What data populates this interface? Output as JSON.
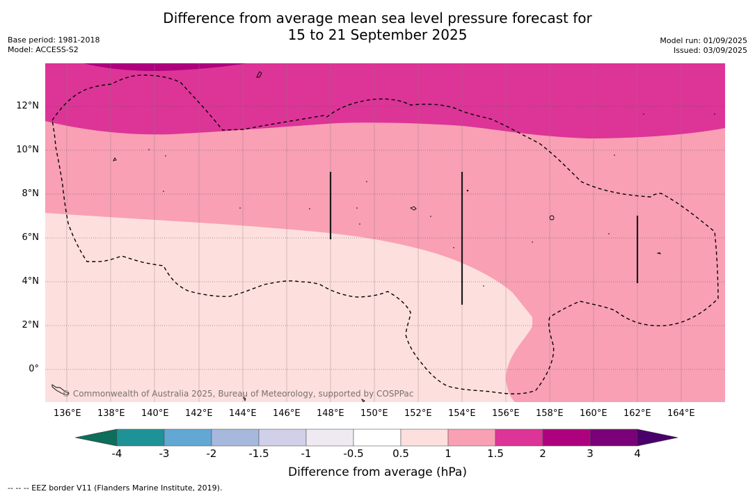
{
  "title_line1": "Difference from average mean sea level pressure forecast for",
  "title_line2": "15 to 21 September 2025",
  "base_period": "Base period: 1981-2018",
  "model": "Model: ACCESS-S2",
  "model_run": "Model run: 01/09/2025",
  "issued": "Issued: 03/09/2025",
  "copyright": "© Commonwealth of Australia 2025, Bureau of Meteorology, supported by COSPPac",
  "footnote": "--  --  -- EEZ border V11 (Flanders Marine Institute, 2019).",
  "map": {
    "lon_labels": [
      "136°E",
      "138°E",
      "140°E",
      "142°E",
      "144°E",
      "146°E",
      "148°E",
      "150°E",
      "152°E",
      "154°E",
      "156°E",
      "158°E",
      "160°E",
      "162°E",
      "164°E"
    ],
    "lat_labels": [
      "12°N",
      "10°N",
      "8°N",
      "6°N",
      "4°N",
      "2°N",
      "0°"
    ],
    "lon_range": [
      135,
      166
    ],
    "lat_range": [
      -1.5,
      13.9
    ]
  },
  "legend": {
    "title": "Difference from average (hPa)",
    "tick_labels": [
      "-4",
      "-3",
      "-2",
      "-1.5",
      "-1",
      "-0.5",
      "0.5",
      "1",
      "1.5",
      "2",
      "3",
      "4"
    ],
    "colors": [
      "#1e9297",
      "#62a8d3",
      "#a6b9dd",
      "#d0d0e8",
      "#efeaf2",
      "#ffffff",
      "#fde0de",
      "#f9a0b4",
      "#dd3497",
      "#ae017e",
      "#7a0177"
    ],
    "under_color": "#0d6e5b",
    "over_color": "#4a006a"
  }
}
